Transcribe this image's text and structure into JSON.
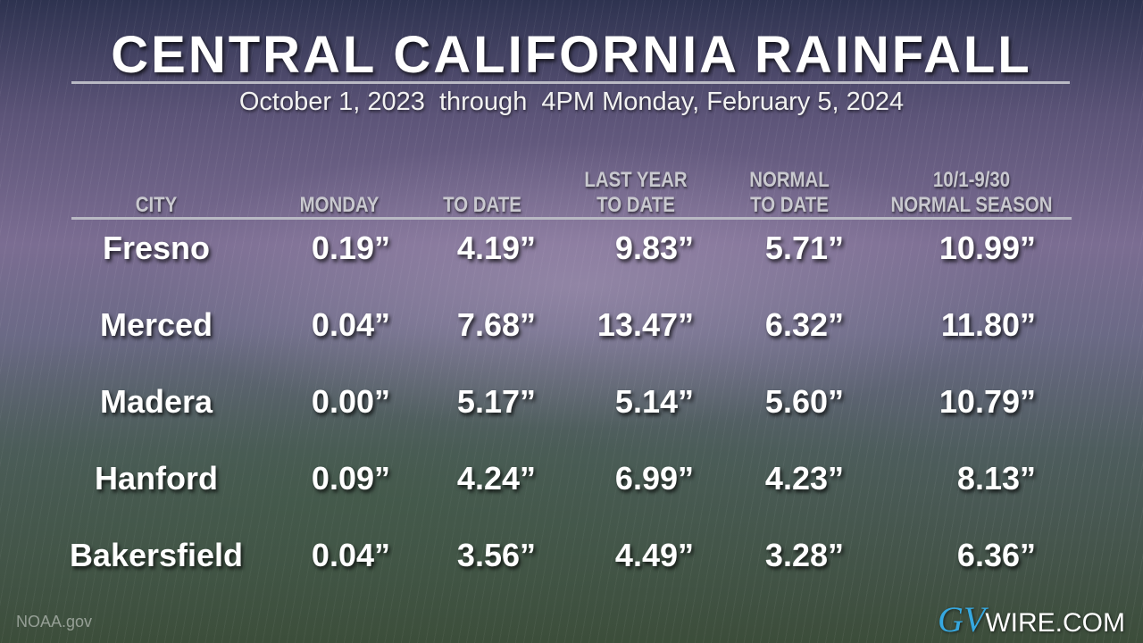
{
  "header": {
    "title": "CENTRAL CALIFORNIA RAINFALL",
    "subtitle": "October 1, 2023  through  4PM Monday, February 5, 2024"
  },
  "table": {
    "columns": [
      [
        "CITY"
      ],
      [
        "MONDAY"
      ],
      [
        "TO DATE"
      ],
      [
        "LAST YEAR",
        "TO DATE"
      ],
      [
        "NORMAL",
        "TO DATE"
      ],
      [
        "10/1-9/30",
        "NORMAL SEASON"
      ]
    ],
    "rows": [
      [
        "Fresno",
        "0.19”",
        "4.19”",
        "9.83”",
        "5.71”",
        "10.99”"
      ],
      [
        "Merced",
        "0.04”",
        "7.68”",
        "13.47”",
        "6.32”",
        "11.80”"
      ],
      [
        "Madera",
        "0.00”",
        "5.17”",
        "5.14”",
        "5.60”",
        "10.79”"
      ],
      [
        "Hanford",
        "0.09”",
        "4.24”",
        "6.99”",
        "4.23”",
        "8.13”"
      ],
      [
        "Bakersfield",
        "0.04”",
        "3.56”",
        "4.49”",
        "3.28”",
        "6.36”"
      ]
    ]
  },
  "footer": {
    "source": "NOAA.gov",
    "logo": [
      "GV",
      "WIRE.COM"
    ]
  }
}
